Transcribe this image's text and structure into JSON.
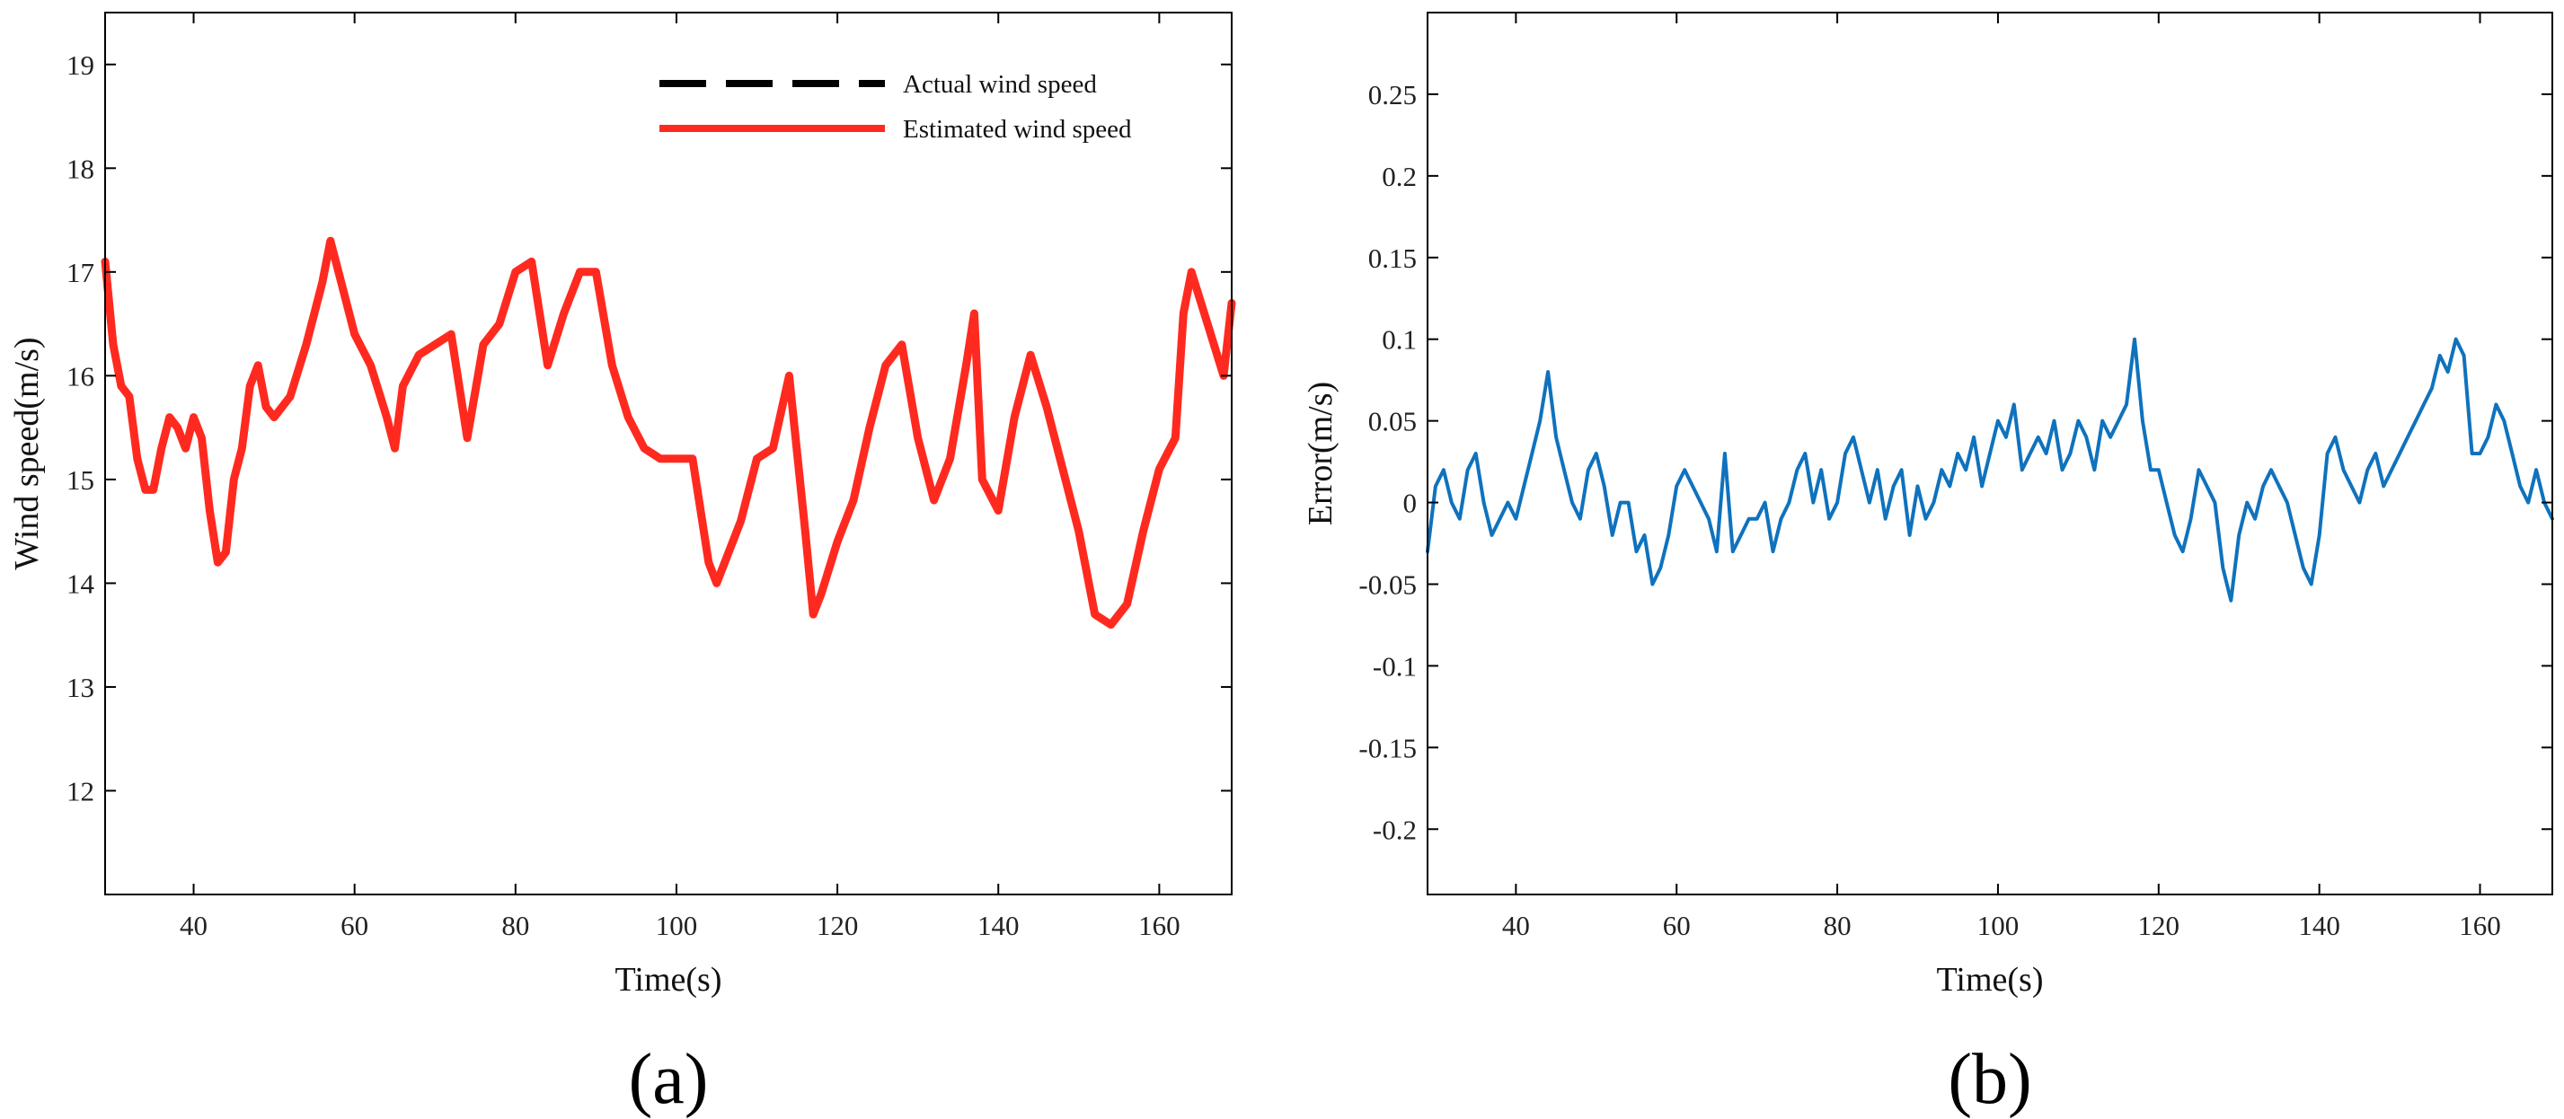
{
  "chart_data": [
    {
      "type": "line",
      "panel_label": "(a)",
      "title": "",
      "xlabel": "Time(s)",
      "ylabel": "Wind speed(m/s)",
      "xlim": [
        29,
        169
      ],
      "ylim": [
        11,
        19.5
      ],
      "xticks": [
        40,
        60,
        80,
        100,
        120,
        140,
        160
      ],
      "yticks": [
        12,
        13,
        14,
        15,
        16,
        17,
        18,
        19
      ],
      "grid": false,
      "legend_position": "top-right",
      "series": [
        {
          "name": "Actual wind speed",
          "color": "#000000",
          "style": "dashed",
          "x": [
            29,
            30,
            31,
            32,
            33,
            34,
            35,
            36,
            37,
            38,
            39,
            40,
            41,
            42,
            43,
            44,
            45,
            46,
            47,
            48,
            49,
            50,
            52,
            54,
            56,
            57,
            58,
            60,
            62,
            64,
            65,
            66,
            68,
            70,
            72,
            74,
            76,
            78,
            80,
            82,
            84,
            86,
            88,
            90,
            92,
            94,
            96,
            98,
            100,
            102,
            104,
            105,
            106,
            108,
            110,
            112,
            114,
            116,
            117,
            118,
            120,
            122,
            124,
            126,
            128,
            130,
            132,
            134,
            136,
            137,
            138,
            140,
            142,
            144,
            146,
            148,
            150,
            152,
            154,
            156,
            158,
            160,
            162,
            163,
            164,
            166,
            168,
            169
          ],
          "values": [
            17.1,
            16.3,
            15.9,
            15.8,
            15.2,
            14.9,
            14.9,
            15.3,
            15.6,
            15.5,
            15.3,
            15.6,
            15.4,
            14.7,
            14.2,
            14.3,
            15.0,
            15.3,
            15.9,
            16.1,
            15.7,
            15.6,
            15.8,
            16.3,
            16.9,
            17.3,
            17.0,
            16.4,
            16.1,
            15.6,
            15.3,
            15.9,
            16.2,
            16.3,
            16.4,
            15.4,
            16.3,
            16.5,
            17.0,
            17.1,
            16.1,
            16.6,
            17.0,
            17.0,
            16.1,
            15.6,
            15.3,
            15.2,
            15.2,
            15.2,
            14.2,
            14.0,
            14.2,
            14.6,
            15.2,
            15.3,
            16.0,
            14.5,
            13.7,
            13.9,
            14.4,
            14.8,
            15.5,
            16.1,
            16.3,
            15.4,
            14.8,
            15.2,
            16.1,
            16.6,
            15.0,
            14.7,
            15.6,
            16.2,
            15.7,
            15.1,
            14.5,
            13.7,
            13.6,
            13.8,
            14.5,
            15.1,
            15.4,
            16.6,
            17.0,
            16.5,
            16.0,
            16.7
          ]
        },
        {
          "name": "Estimated wind speed",
          "color": "#ff2a1f",
          "style": "solid",
          "x": [
            29,
            30,
            31,
            32,
            33,
            34,
            35,
            36,
            37,
            38,
            39,
            40,
            41,
            42,
            43,
            44,
            45,
            46,
            47,
            48,
            49,
            50,
            52,
            54,
            56,
            57,
            58,
            60,
            62,
            64,
            65,
            66,
            68,
            70,
            72,
            74,
            76,
            78,
            80,
            82,
            84,
            86,
            88,
            90,
            92,
            94,
            96,
            98,
            100,
            102,
            104,
            105,
            106,
            108,
            110,
            112,
            114,
            116,
            117,
            118,
            120,
            122,
            124,
            126,
            128,
            130,
            132,
            134,
            136,
            137,
            138,
            140,
            142,
            144,
            146,
            148,
            150,
            152,
            154,
            156,
            158,
            160,
            162,
            163,
            164,
            166,
            168,
            169
          ],
          "values": [
            17.1,
            16.3,
            15.9,
            15.8,
            15.2,
            14.9,
            14.9,
            15.3,
            15.6,
            15.5,
            15.3,
            15.6,
            15.4,
            14.7,
            14.2,
            14.3,
            15.0,
            15.3,
            15.9,
            16.1,
            15.7,
            15.6,
            15.8,
            16.3,
            16.9,
            17.3,
            17.0,
            16.4,
            16.1,
            15.6,
            15.3,
            15.9,
            16.2,
            16.3,
            16.4,
            15.4,
            16.3,
            16.5,
            17.0,
            17.1,
            16.1,
            16.6,
            17.0,
            17.0,
            16.1,
            15.6,
            15.3,
            15.2,
            15.2,
            15.2,
            14.2,
            14.0,
            14.2,
            14.6,
            15.2,
            15.3,
            16.0,
            14.5,
            13.7,
            13.9,
            14.4,
            14.8,
            15.5,
            16.1,
            16.3,
            15.4,
            14.8,
            15.2,
            16.1,
            16.6,
            15.0,
            14.7,
            15.6,
            16.2,
            15.7,
            15.1,
            14.5,
            13.7,
            13.6,
            13.8,
            14.5,
            15.1,
            15.4,
            16.6,
            17.0,
            16.5,
            16.0,
            16.7
          ]
        }
      ]
    },
    {
      "type": "line",
      "panel_label": "(b)",
      "title": "",
      "xlabel": "Time(s)",
      "ylabel": "Error(m/s)",
      "xlim": [
        29,
        169
      ],
      "ylim": [
        -0.24,
        0.3
      ],
      "xticks": [
        40,
        60,
        80,
        100,
        120,
        140,
        160
      ],
      "yticks": [
        -0.2,
        -0.15,
        -0.1,
        -0.05,
        0,
        0.05,
        0.1,
        0.15,
        0.2,
        0.25
      ],
      "ytick_labels": [
        "-0.2",
        "-0.15",
        "-0.1",
        "-0.05",
        "0",
        "0.05",
        "0.1",
        "0.15",
        "0.2",
        "0.25"
      ],
      "grid": false,
      "series": [
        {
          "name": "Error",
          "color": "#0f72bd",
          "style": "solid",
          "x": [
            29,
            30,
            31,
            32,
            33,
            34,
            35,
            36,
            37,
            38,
            39,
            40,
            41,
            42,
            43,
            44,
            45,
            46,
            47,
            48,
            49,
            50,
            51,
            52,
            53,
            54,
            55,
            56,
            57,
            58,
            59,
            60,
            61,
            62,
            63,
            64,
            65,
            66,
            67,
            68,
            69,
            70,
            71,
            72,
            73,
            74,
            75,
            76,
            77,
            78,
            79,
            80,
            81,
            82,
            83,
            84,
            85,
            86,
            87,
            88,
            89,
            90,
            91,
            92,
            93,
            94,
            95,
            96,
            97,
            98,
            99,
            100,
            101,
            102,
            103,
            104,
            105,
            106,
            107,
            108,
            109,
            110,
            111,
            112,
            113,
            114,
            115,
            116,
            117,
            118,
            119,
            120,
            121,
            122,
            123,
            124,
            125,
            126,
            127,
            128,
            129,
            130,
            131,
            132,
            133,
            134,
            135,
            136,
            137,
            138,
            139,
            140,
            141,
            142,
            143,
            144,
            145,
            146,
            147,
            148,
            149,
            150,
            151,
            152,
            153,
            154,
            155,
            156,
            157,
            158,
            159,
            160,
            161,
            162,
            163,
            164,
            165,
            166,
            167,
            168,
            169
          ],
          "values": [
            -0.03,
            0.01,
            0.02,
            0.0,
            -0.01,
            0.02,
            0.03,
            0.0,
            -0.02,
            -0.01,
            0.0,
            -0.01,
            0.01,
            0.03,
            0.05,
            0.08,
            0.04,
            0.02,
            0.0,
            -0.01,
            0.02,
            0.03,
            0.01,
            -0.02,
            0.0,
            0.0,
            -0.03,
            -0.02,
            -0.05,
            -0.04,
            -0.02,
            0.01,
            0.02,
            0.01,
            0.0,
            -0.01,
            -0.03,
            0.03,
            -0.03,
            -0.02,
            -0.01,
            -0.01,
            0.0,
            -0.03,
            -0.01,
            0.0,
            0.02,
            0.03,
            0.0,
            0.02,
            -0.01,
            0.0,
            0.03,
            0.04,
            0.02,
            0.0,
            0.02,
            -0.01,
            0.01,
            0.02,
            -0.02,
            0.01,
            -0.01,
            0.0,
            0.02,
            0.01,
            0.03,
            0.02,
            0.04,
            0.01,
            0.03,
            0.05,
            0.04,
            0.06,
            0.02,
            0.03,
            0.04,
            0.03,
            0.05,
            0.02,
            0.03,
            0.05,
            0.04,
            0.02,
            0.05,
            0.04,
            0.05,
            0.06,
            0.1,
            0.05,
            0.02,
            0.02,
            0.0,
            -0.02,
            -0.03,
            -0.01,
            0.02,
            0.01,
            0.0,
            -0.04,
            -0.06,
            -0.02,
            0.0,
            -0.01,
            0.01,
            0.02,
            0.01,
            0.0,
            -0.02,
            -0.04,
            -0.05,
            -0.02,
            0.03,
            0.04,
            0.02,
            0.01,
            0.0,
            0.02,
            0.03,
            0.01,
            0.02,
            0.03,
            0.04,
            0.05,
            0.06,
            0.07,
            0.09,
            0.08,
            0.1,
            0.09,
            0.03,
            0.03,
            0.04,
            0.06,
            0.05,
            0.03,
            0.01,
            0.0,
            0.02,
            0.0,
            -0.01
          ]
        }
      ]
    }
  ]
}
